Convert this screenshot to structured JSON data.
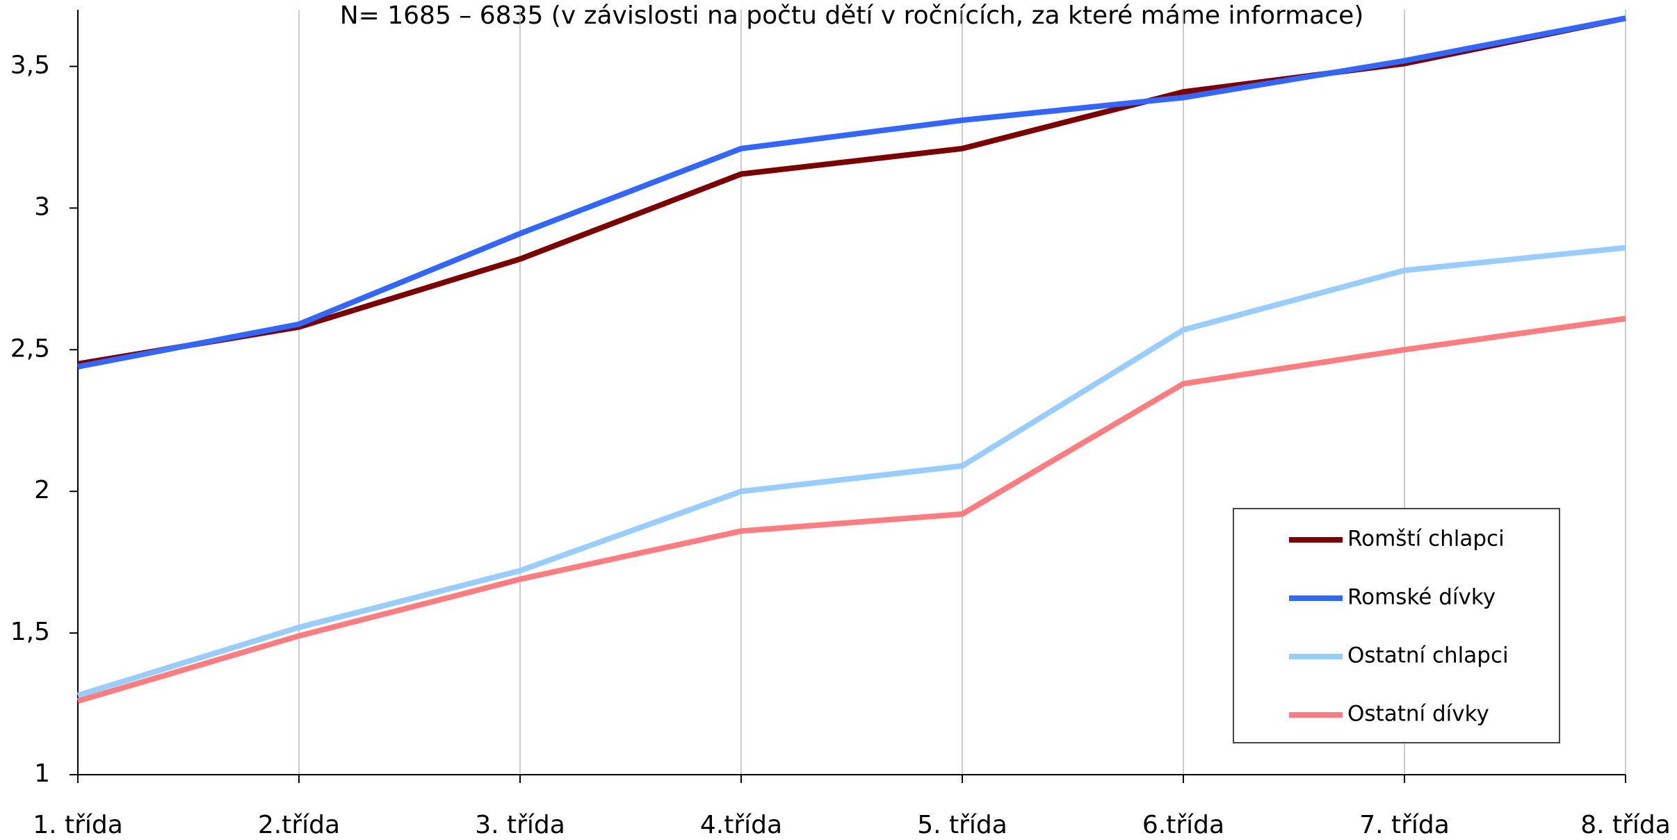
{
  "chart_data": {
    "type": "line",
    "title": "N= 1685 – 6835 (v závislosti na počtu dětí v ročnících, za které máme informace)",
    "categories": [
      "1. třída",
      "2.třída",
      "3. třída",
      "4.třída",
      "5. třída",
      "6.třída",
      "7. třída",
      "8. třída"
    ],
    "series": [
      {
        "name": "Romští chlapci",
        "color": "#7b0000",
        "values": [
          2.45,
          2.58,
          2.82,
          3.12,
          3.21,
          3.41,
          3.51,
          3.67
        ]
      },
      {
        "name": "Romské dívky",
        "color": "#3366ff",
        "values": [
          2.44,
          2.59,
          2.91,
          3.21,
          3.31,
          3.39,
          3.52,
          3.67
        ]
      },
      {
        "name": "Ostatní chlapci",
        "color": "#99ccff",
        "values": [
          1.28,
          1.52,
          1.72,
          2.0,
          2.09,
          2.57,
          2.78,
          2.86
        ]
      },
      {
        "name": "Ostatní dívky",
        "color": "#ff7c80",
        "values": [
          1.26,
          1.49,
          1.69,
          1.86,
          1.92,
          2.38,
          2.5,
          2.61
        ]
      }
    ],
    "ylim": [
      1,
      3.7
    ],
    "yticks": [
      1,
      {
        "value": 1.5,
        "label": "1,5"
      },
      2,
      {
        "value": 2.5,
        "label": "2,5"
      },
      3,
      {
        "value": 3.5,
        "label": "3,5"
      }
    ],
    "grid": true,
    "legend": "lower right"
  }
}
